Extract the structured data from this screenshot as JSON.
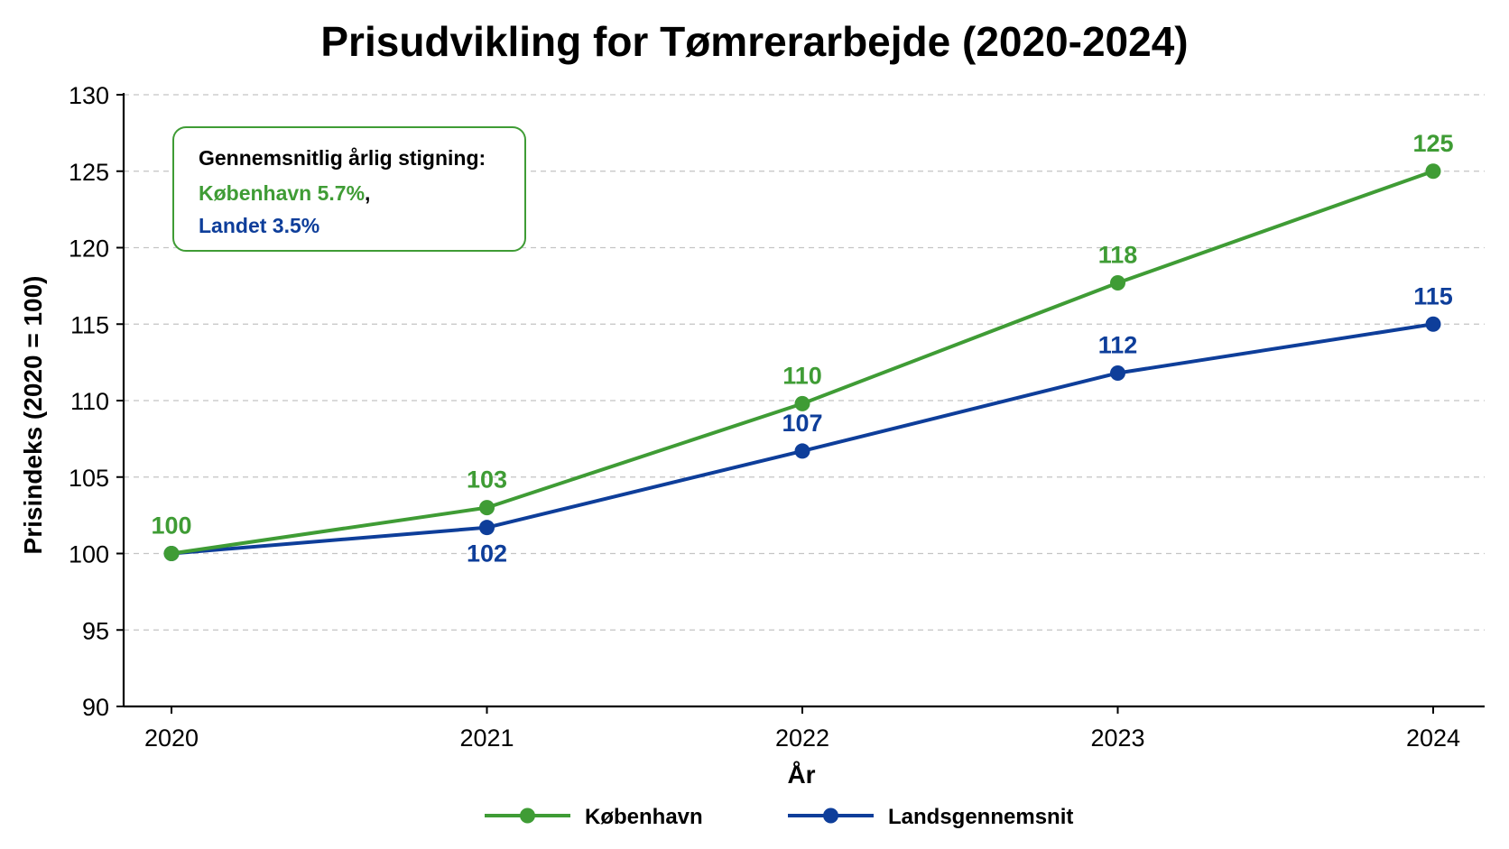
{
  "chart_data": {
    "type": "line",
    "title": "Prisudvikling for Tømrerarbejde (2020-2024)",
    "xlabel": "År",
    "ylabel": "Prisindeks (2020 = 100)",
    "categories": [
      "2020",
      "2021",
      "2022",
      "2023",
      "2024"
    ],
    "ylim": [
      90,
      130
    ],
    "yticks": [
      90,
      95,
      100,
      105,
      110,
      115,
      120,
      125,
      130
    ],
    "grid": true,
    "legend_position": "bottom",
    "series": [
      {
        "name": "København",
        "color": "#3f9c35",
        "values": [
          100,
          103,
          109.8,
          117.7,
          125
        ],
        "labels": [
          "100",
          "103",
          "110",
          "118",
          "125"
        ]
      },
      {
        "name": "Landsgennemsnit",
        "color": "#0e3e9a",
        "values": [
          100,
          101.7,
          106.7,
          111.8,
          115
        ],
        "labels": [
          "",
          "102",
          "107",
          "112",
          "115"
        ]
      }
    ],
    "annotation": {
      "heading": "Gennemsnitlig årlig stigning:",
      "line1": "København 5.7%",
      "separator": ",",
      "line2": "Landet 3.5%",
      "border_color": "#3f9c35"
    }
  }
}
